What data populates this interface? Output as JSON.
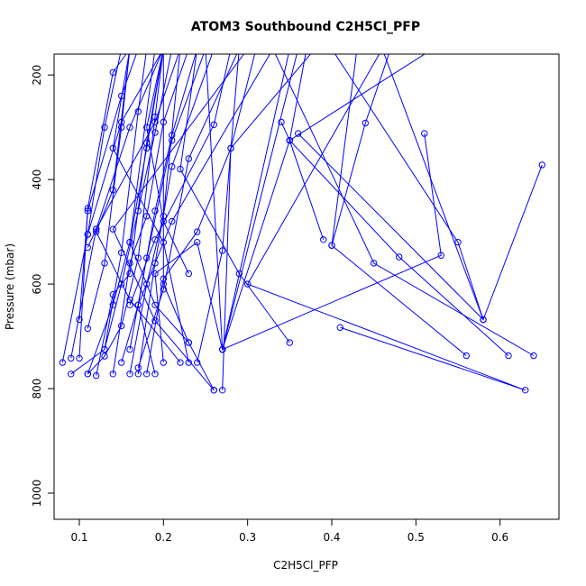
{
  "chart_data": {
    "type": "line",
    "title": "ATOM3 Southbound C2H5Cl_PFP",
    "xlabel": "C2H5Cl_PFP",
    "ylabel": "Pressure (mbar)",
    "xlim": [
      0.07,
      0.67
    ],
    "ylim": [
      1050,
      160
    ],
    "x_ticks": [
      "0.1",
      "0.2",
      "0.3",
      "0.4",
      "0.5",
      "0.6"
    ],
    "y_ticks": [
      "200",
      "400",
      "600",
      "800",
      "1000"
    ],
    "grid": false,
    "legend": "none",
    "marker": "open-circle",
    "series_color": "#0000ff",
    "series": [
      {
        "points": [
          [
            0.08,
            750
          ],
          [
            0.11,
            505
          ],
          [
            0.13,
            300
          ],
          [
            0.15,
            150
          ]
        ]
      },
      {
        "points": [
          [
            0.09,
            742
          ],
          [
            0.12,
            495
          ],
          [
            0.16,
            300
          ],
          [
            0.2,
            150
          ]
        ]
      },
      {
        "points": [
          [
            0.09,
            772
          ],
          [
            0.13,
            725
          ],
          [
            0.15,
            540
          ],
          [
            0.17,
            270
          ],
          [
            0.18,
            150
          ]
        ]
      },
      {
        "points": [
          [
            0.1,
            742
          ],
          [
            0.11,
            455
          ],
          [
            0.14,
            195
          ],
          [
            0.16,
            150
          ]
        ]
      },
      {
        "points": [
          [
            0.1,
            668
          ],
          [
            0.11,
            460
          ],
          [
            0.15,
            240
          ],
          [
            0.17,
            150
          ]
        ]
      },
      {
        "points": [
          [
            0.11,
            772
          ],
          [
            0.13,
            738
          ],
          [
            0.15,
            680
          ],
          [
            0.17,
            550
          ],
          [
            0.19,
            280
          ],
          [
            0.2,
            150
          ]
        ]
      },
      {
        "points": [
          [
            0.11,
            772
          ],
          [
            0.14,
            640
          ],
          [
            0.16,
            520
          ],
          [
            0.18,
            340
          ],
          [
            0.2,
            150
          ]
        ]
      },
      {
        "points": [
          [
            0.11,
            685
          ],
          [
            0.13,
            560
          ],
          [
            0.15,
            300
          ],
          [
            0.16,
            150
          ]
        ]
      },
      {
        "points": [
          [
            0.11,
            530
          ],
          [
            0.12,
            495
          ],
          [
            0.19,
            290
          ],
          [
            0.22,
            150
          ]
        ]
      },
      {
        "points": [
          [
            0.11,
            505
          ],
          [
            0.15,
            290
          ],
          [
            0.2,
            150
          ]
        ]
      },
      {
        "points": [
          [
            0.12,
            775
          ],
          [
            0.14,
            620
          ],
          [
            0.16,
            580
          ],
          [
            0.18,
            330
          ],
          [
            0.2,
            150
          ]
        ]
      },
      {
        "points": [
          [
            0.13,
            725
          ],
          [
            0.15,
            600
          ],
          [
            0.17,
            460
          ],
          [
            0.19,
            310
          ],
          [
            0.21,
            150
          ]
        ]
      },
      {
        "points": [
          [
            0.14,
            772
          ],
          [
            0.16,
            560
          ],
          [
            0.18,
            470
          ],
          [
            0.2,
            290
          ],
          [
            0.23,
            150
          ]
        ]
      },
      {
        "points": [
          [
            0.15,
            750
          ],
          [
            0.17,
            640
          ],
          [
            0.19,
            460
          ],
          [
            0.21,
            315
          ],
          [
            0.24,
            150
          ]
        ]
      },
      {
        "points": [
          [
            0.16,
            772
          ],
          [
            0.18,
            600
          ],
          [
            0.2,
            470
          ],
          [
            0.22,
            150
          ]
        ]
      },
      {
        "points": [
          [
            0.16,
            725
          ],
          [
            0.18,
            550
          ],
          [
            0.21,
            325
          ],
          [
            0.25,
            150
          ]
        ]
      },
      {
        "points": [
          [
            0.16,
            640
          ],
          [
            0.19,
            515
          ],
          [
            0.26,
            295
          ],
          [
            0.28,
            150
          ]
        ]
      },
      {
        "points": [
          [
            0.17,
            772
          ],
          [
            0.19,
            560
          ],
          [
            0.21,
            375
          ],
          [
            0.26,
            150
          ]
        ]
      },
      {
        "points": [
          [
            0.17,
            760
          ],
          [
            0.2,
            610
          ],
          [
            0.23,
            360
          ],
          [
            0.29,
            150
          ]
        ]
      },
      {
        "points": [
          [
            0.18,
            772
          ],
          [
            0.2,
            590
          ],
          [
            0.24,
            500
          ],
          [
            0.28,
            340
          ],
          [
            0.31,
            150
          ]
        ]
      },
      {
        "points": [
          [
            0.19,
            772
          ],
          [
            0.17,
            640
          ],
          [
            0.21,
            480
          ],
          [
            0.33,
            150
          ]
        ]
      },
      {
        "points": [
          [
            0.2,
            750
          ],
          [
            0.19,
            580
          ],
          [
            0.24,
            520
          ],
          [
            0.27,
            725
          ],
          [
            0.35,
            150
          ]
        ]
      },
      {
        "points": [
          [
            0.22,
            750
          ],
          [
            0.16,
            630
          ],
          [
            0.12,
            500
          ],
          [
            0.14,
            420
          ],
          [
            0.16,
            150
          ]
        ]
      },
      {
        "points": [
          [
            0.23,
            750
          ],
          [
            0.2,
            520
          ],
          [
            0.14,
            340
          ],
          [
            0.16,
            150
          ]
        ]
      },
      {
        "points": [
          [
            0.23,
            712
          ],
          [
            0.19,
            640
          ],
          [
            0.16,
            520
          ],
          [
            0.19,
            150
          ]
        ]
      },
      {
        "points": [
          [
            0.23,
            580
          ],
          [
            0.2,
            480
          ],
          [
            0.18,
            300
          ],
          [
            0.2,
            150
          ]
        ]
      },
      {
        "points": [
          [
            0.24,
            750
          ],
          [
            0.27,
            536
          ],
          [
            0.29,
            150
          ]
        ]
      },
      {
        "points": [
          [
            0.26,
            803
          ],
          [
            0.23,
            712
          ],
          [
            0.2,
            600
          ],
          [
            0.2,
            150
          ]
        ]
      },
      {
        "points": [
          [
            0.27,
            803
          ],
          [
            0.28,
            340
          ],
          [
            0.38,
            150
          ]
        ]
      },
      {
        "points": [
          [
            0.26,
            803
          ],
          [
            0.19,
            670
          ],
          [
            0.14,
            495
          ],
          [
            0.3,
            150
          ]
        ]
      },
      {
        "points": [
          [
            0.35,
            712
          ],
          [
            0.29,
            580
          ],
          [
            0.22,
            380
          ],
          [
            0.24,
            150
          ]
        ]
      },
      {
        "points": [
          [
            0.34,
            290
          ],
          [
            0.35,
            325
          ],
          [
            0.27,
            725
          ],
          [
            0.25,
            150
          ]
        ]
      },
      {
        "points": [
          [
            0.36,
            312
          ],
          [
            0.58,
            668
          ],
          [
            0.55,
            520
          ],
          [
            0.4,
            150
          ]
        ]
      },
      {
        "points": [
          [
            0.39,
            515
          ],
          [
            0.35,
            325
          ],
          [
            0.37,
            150
          ]
        ]
      },
      {
        "points": [
          [
            0.4,
            526
          ],
          [
            0.44,
            292
          ],
          [
            0.47,
            150
          ]
        ]
      },
      {
        "points": [
          [
            0.41,
            683
          ],
          [
            0.63,
            803
          ],
          [
            0.3,
            600
          ],
          [
            0.46,
            150
          ]
        ]
      },
      {
        "points": [
          [
            0.51,
            312
          ],
          [
            0.53,
            545
          ],
          [
            0.27,
            725
          ],
          [
            0.36,
            150
          ]
        ]
      },
      {
        "points": [
          [
            0.56,
            737
          ],
          [
            0.4,
            526
          ],
          [
            0.43,
            150
          ]
        ]
      },
      {
        "points": [
          [
            0.61,
            737
          ],
          [
            0.48,
            548
          ],
          [
            0.35,
            325
          ],
          [
            0.52,
            150
          ]
        ]
      },
      {
        "points": [
          [
            0.64,
            737
          ],
          [
            0.45,
            560
          ],
          [
            0.33,
            150
          ]
        ]
      },
      {
        "points": [
          [
            0.65,
            372
          ],
          [
            0.58,
            668
          ],
          [
            0.46,
            150
          ]
        ]
      }
    ]
  }
}
